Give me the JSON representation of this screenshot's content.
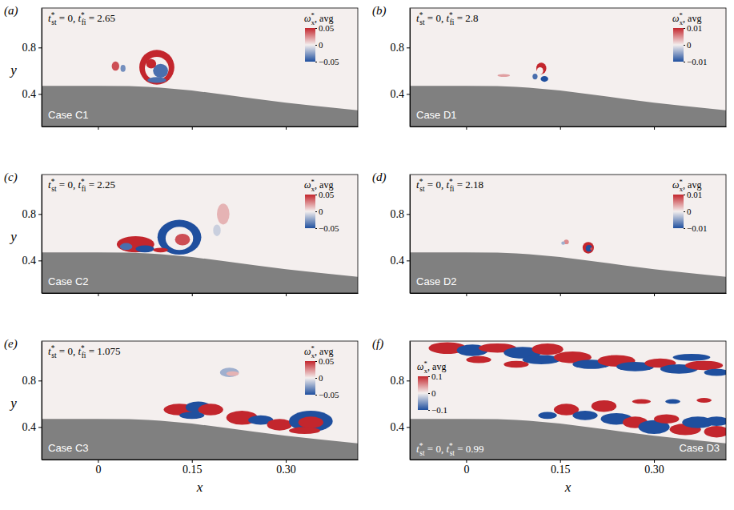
{
  "chart_data": [
    {
      "type": "contour",
      "panel_label": "(a)",
      "case_label": "Case C1",
      "time_labels": [
        {
          "base": "t",
          "sup": "*",
          "sub": "st",
          "rest": " = ",
          "value": 0
        },
        {
          "base": "t",
          "sup": "*",
          "sub": "fi",
          "rest": " = ",
          "value": 2.65
        }
      ],
      "time_sep": ", ",
      "colorbar_title": {
        "base": "ω",
        "sup": "*",
        "sub": "x",
        "rest": ", avg"
      },
      "clim": [
        -0.05,
        0.05
      ],
      "cticks": [
        0.05,
        0,
        {
          "value": -0.05,
          "label": "−0.05"
        }
      ],
      "legend": "top-right",
      "xlim": [
        -0.09,
        0.415
      ],
      "ylim": [
        0.12,
        1.14
      ],
      "xticks": [
        0,
        0.15,
        0.3
      ],
      "yticks": [
        0.4,
        0.8
      ],
      "ylabel": "y",
      "tick_labels": "y",
      "surface": {
        "x": [
          -0.09,
          0.0,
          0.05,
          0.08,
          0.1,
          0.15,
          0.2,
          0.25,
          0.3,
          0.35,
          0.415
        ],
        "y": [
          0.47,
          0.47,
          0.468,
          0.462,
          0.455,
          0.43,
          0.395,
          0.36,
          0.325,
          0.295,
          0.26
        ]
      },
      "structures": [
        {
          "x": 0.094,
          "y": 0.63,
          "rx": 0.028,
          "ry": 0.15,
          "value": 0.05
        },
        {
          "x": 0.094,
          "y": 0.62,
          "rx": 0.019,
          "ry": 0.1,
          "value": 0
        },
        {
          "x": 0.1,
          "y": 0.6,
          "rx": 0.012,
          "ry": 0.06,
          "value": -0.04
        },
        {
          "x": 0.085,
          "y": 0.66,
          "rx": 0.008,
          "ry": 0.04,
          "value": 0.05
        },
        {
          "x": 0.094,
          "y": 0.52,
          "rx": 0.015,
          "ry": 0.025,
          "value": -0.04
        },
        {
          "x": 0.028,
          "y": 0.64,
          "rx": 0.006,
          "ry": 0.04,
          "value": 0.04
        },
        {
          "x": 0.04,
          "y": 0.62,
          "rx": 0.004,
          "ry": 0.03,
          "value": -0.03
        }
      ]
    },
    {
      "type": "contour",
      "panel_label": "(b)",
      "case_label": "Case D1",
      "time_labels": [
        {
          "base": "t",
          "sup": "*",
          "sub": "st",
          "rest": " = ",
          "value": 0
        },
        {
          "base": "t",
          "sup": "*",
          "sub": "fi",
          "rest": " = ",
          "value": 2.8
        }
      ],
      "time_sep": ", ",
      "colorbar_title": {
        "base": "ω",
        "sup": "*",
        "sub": "x",
        "rest": ", avg"
      },
      "clim": [
        -0.01,
        0.01
      ],
      "cticks": [
        0.01,
        0,
        {
          "value": -0.01,
          "label": "−0.01"
        }
      ],
      "legend": "top-right",
      "xlim": [
        -0.09,
        0.415
      ],
      "ylim": [
        0.12,
        1.14
      ],
      "xticks": [
        0,
        0.15,
        0.3
      ],
      "yticks": [
        0.4,
        0.8
      ],
      "tick_labels": "y",
      "surface": {
        "x": [
          -0.09,
          0.0,
          0.05,
          0.08,
          0.1,
          0.15,
          0.2,
          0.25,
          0.3,
          0.35,
          0.415
        ],
        "y": [
          0.47,
          0.47,
          0.468,
          0.462,
          0.455,
          0.43,
          0.395,
          0.36,
          0.325,
          0.295,
          0.26
        ]
      },
      "structures": [
        {
          "x": 0.12,
          "y": 0.62,
          "rx": 0.008,
          "ry": 0.05,
          "value": 0.01
        },
        {
          "x": 0.118,
          "y": 0.6,
          "rx": 0.005,
          "ry": 0.03,
          "value": 0
        },
        {
          "x": 0.125,
          "y": 0.53,
          "rx": 0.006,
          "ry": 0.025,
          "value": -0.01
        },
        {
          "x": 0.11,
          "y": 0.55,
          "rx": 0.004,
          "ry": 0.025,
          "value": -0.008
        },
        {
          "x": 0.06,
          "y": 0.56,
          "rx": 0.01,
          "ry": 0.012,
          "value": 0.004
        }
      ]
    },
    {
      "type": "contour",
      "panel_label": "(c)",
      "case_label": "Case C2",
      "time_labels": [
        {
          "base": "t",
          "sup": "*",
          "sub": "st",
          "rest": " = ",
          "value": 0
        },
        {
          "base": "t",
          "sup": "*",
          "sub": "fi",
          "rest": " = ",
          "value": 2.25
        }
      ],
      "time_sep": ", ",
      "colorbar_title": {
        "base": "ω",
        "sup": "*",
        "sub": "x",
        "rest": ", avg"
      },
      "clim": [
        -0.05,
        0.05
      ],
      "cticks": [
        0.05,
        0,
        {
          "value": -0.05,
          "label": "−0.05"
        }
      ],
      "legend": "top-right",
      "xlim": [
        -0.09,
        0.415
      ],
      "ylim": [
        0.12,
        1.14
      ],
      "xticks": [
        0,
        0.15,
        0.3
      ],
      "yticks": [
        0.4,
        0.8
      ],
      "ylabel": "y",
      "tick_labels": "y",
      "surface": {
        "x": [
          -0.09,
          0.0,
          0.05,
          0.08,
          0.1,
          0.15,
          0.2,
          0.25,
          0.3,
          0.35,
          0.415
        ],
        "y": [
          0.47,
          0.47,
          0.468,
          0.462,
          0.455,
          0.43,
          0.395,
          0.36,
          0.325,
          0.295,
          0.26
        ]
      },
      "structures": [
        {
          "x": 0.13,
          "y": 0.6,
          "rx": 0.035,
          "ry": 0.15,
          "value": -0.05
        },
        {
          "x": 0.13,
          "y": 0.59,
          "rx": 0.022,
          "ry": 0.1,
          "value": 0
        },
        {
          "x": 0.135,
          "y": 0.58,
          "rx": 0.012,
          "ry": 0.05,
          "value": 0.04
        },
        {
          "x": 0.06,
          "y": 0.54,
          "rx": 0.03,
          "ry": 0.07,
          "value": 0.05
        },
        {
          "x": 0.075,
          "y": 0.5,
          "rx": 0.015,
          "ry": 0.03,
          "value": -0.05
        },
        {
          "x": 0.045,
          "y": 0.52,
          "rx": 0.01,
          "ry": 0.03,
          "value": -0.04
        },
        {
          "x": 0.1,
          "y": 0.49,
          "rx": 0.012,
          "ry": 0.02,
          "value": 0.05
        },
        {
          "x": 0.2,
          "y": 0.8,
          "rx": 0.01,
          "ry": 0.09,
          "value": 0.015
        },
        {
          "x": 0.19,
          "y": 0.66,
          "rx": 0.006,
          "ry": 0.05,
          "value": -0.01
        }
      ]
    },
    {
      "type": "contour",
      "panel_label": "(d)",
      "case_label": "Case D2",
      "time_labels": [
        {
          "base": "t",
          "sup": "*",
          "sub": "st",
          "rest": " = ",
          "value": 0
        },
        {
          "base": "t",
          "sup": "*",
          "sub": "fi",
          "rest": " = ",
          "value": 2.18
        }
      ],
      "time_sep": ", ",
      "colorbar_title": {
        "base": "ω",
        "sup": "*",
        "sub": "x",
        "rest": ", avg"
      },
      "clim": [
        -0.01,
        0.01
      ],
      "cticks": [
        0.01,
        0,
        {
          "value": -0.01,
          "label": "−0.01"
        }
      ],
      "legend": "top-right",
      "xlim": [
        -0.09,
        0.415
      ],
      "ylim": [
        0.12,
        1.14
      ],
      "xticks": [
        0,
        0.15,
        0.3
      ],
      "yticks": [
        0.4,
        0.8
      ],
      "tick_labels": "y",
      "surface": {
        "x": [
          -0.09,
          0.0,
          0.05,
          0.08,
          0.1,
          0.15,
          0.2,
          0.25,
          0.3,
          0.35,
          0.415
        ],
        "y": [
          0.47,
          0.47,
          0.468,
          0.462,
          0.455,
          0.43,
          0.395,
          0.36,
          0.325,
          0.295,
          0.26
        ]
      },
      "structures": [
        {
          "x": 0.195,
          "y": 0.51,
          "rx": 0.009,
          "ry": 0.05,
          "value": 0.01
        },
        {
          "x": 0.196,
          "y": 0.505,
          "rx": 0.005,
          "ry": 0.028,
          "value": -0.01
        },
        {
          "x": 0.2,
          "y": 0.5,
          "rx": 0.002,
          "ry": 0.012,
          "value": 0.008
        },
        {
          "x": 0.16,
          "y": 0.56,
          "rx": 0.004,
          "ry": 0.02,
          "value": 0.005
        },
        {
          "x": 0.155,
          "y": 0.55,
          "rx": 0.003,
          "ry": 0.015,
          "value": -0.004
        }
      ]
    },
    {
      "type": "contour",
      "panel_label": "(e)",
      "case_label": "Case C3",
      "time_labels": [
        {
          "base": "t",
          "sup": "*",
          "sub": "st",
          "rest": " = ",
          "value": 0
        },
        {
          "base": "t",
          "sup": "*",
          "sub": "fi",
          "rest": " = ",
          "value": 1.075
        }
      ],
      "time_sep": ", ",
      "colorbar_title": {
        "base": "ω",
        "sup": "*",
        "sub": "x",
        "rest": ", avg"
      },
      "clim": [
        -0.05,
        0.05
      ],
      "cticks": [
        0.05,
        0,
        {
          "value": -0.05,
          "label": "−0.05"
        }
      ],
      "legend": "top-right",
      "xlim": [
        -0.09,
        0.415
      ],
      "ylim": [
        0.12,
        1.14
      ],
      "xticks": [
        0,
        0.15,
        {
          "value": 0.3,
          "label": "0.30"
        }
      ],
      "yticks": [
        0.4,
        0.8
      ],
      "xlabel": "x",
      "ylabel": "y",
      "surface": {
        "x": [
          -0.09,
          0.0,
          0.05,
          0.08,
          0.1,
          0.15,
          0.2,
          0.25,
          0.3,
          0.35,
          0.415
        ],
        "y": [
          0.47,
          0.47,
          0.468,
          0.462,
          0.455,
          0.43,
          0.395,
          0.36,
          0.325,
          0.295,
          0.26
        ]
      },
      "structures": [
        {
          "x": 0.13,
          "y": 0.55,
          "rx": 0.025,
          "ry": 0.05,
          "value": 0.05
        },
        {
          "x": 0.16,
          "y": 0.57,
          "rx": 0.02,
          "ry": 0.05,
          "value": -0.05
        },
        {
          "x": 0.18,
          "y": 0.55,
          "rx": 0.02,
          "ry": 0.05,
          "value": 0.05
        },
        {
          "x": 0.15,
          "y": 0.5,
          "rx": 0.02,
          "ry": 0.03,
          "value": -0.05
        },
        {
          "x": 0.23,
          "y": 0.48,
          "rx": 0.025,
          "ry": 0.06,
          "value": 0.05
        },
        {
          "x": 0.26,
          "y": 0.46,
          "rx": 0.02,
          "ry": 0.04,
          "value": -0.05
        },
        {
          "x": 0.29,
          "y": 0.42,
          "rx": 0.02,
          "ry": 0.05,
          "value": 0.05
        },
        {
          "x": 0.34,
          "y": 0.45,
          "rx": 0.035,
          "ry": 0.09,
          "value": -0.05
        },
        {
          "x": 0.34,
          "y": 0.44,
          "rx": 0.02,
          "ry": 0.05,
          "value": 0.05
        },
        {
          "x": 0.33,
          "y": 0.37,
          "rx": 0.025,
          "ry": 0.03,
          "value": 0.05
        },
        {
          "x": 0.21,
          "y": 0.87,
          "rx": 0.015,
          "ry": 0.04,
          "value": -0.02
        },
        {
          "x": 0.215,
          "y": 0.86,
          "rx": 0.01,
          "ry": 0.02,
          "value": 0.015
        }
      ]
    },
    {
      "type": "contour",
      "panel_label": "(f)",
      "case_label": "Case D3",
      "time_labels": [
        {
          "base": "t",
          "sup": "*",
          "sub": "st",
          "rest": " = ",
          "value": 0
        },
        {
          "base": "t",
          "sup": "*",
          "sub": "st",
          "rest": " = ",
          "value": 0.99
        }
      ],
      "time_sep": ", ",
      "colorbar_title": {
        "base": "ω",
        "sup": "*",
        "sub": "x",
        "rest": ", avg"
      },
      "clim": [
        -0.1,
        0.1
      ],
      "cticks": [
        0.1,
        0,
        {
          "value": -0.1,
          "label": "−0.1"
        }
      ],
      "legend": "left",
      "xlim": [
        -0.09,
        0.415
      ],
      "ylim": [
        0.12,
        1.14
      ],
      "xticks": [
        0,
        0.15,
        {
          "value": 0.3,
          "label": "0.30"
        }
      ],
      "yticks": [
        0.4,
        0.8
      ],
      "xlabel": "x",
      "surface": {
        "x": [
          -0.09,
          0.0,
          0.05,
          0.08,
          0.1,
          0.15,
          0.2,
          0.25,
          0.3,
          0.35,
          0.415
        ],
        "y": [
          0.47,
          0.47,
          0.468,
          0.462,
          0.455,
          0.43,
          0.395,
          0.36,
          0.325,
          0.295,
          0.26
        ]
      },
      "structures": [
        {
          "x": -0.03,
          "y": 1.08,
          "rx": 0.03,
          "ry": 0.05,
          "value": 0.1
        },
        {
          "x": 0.01,
          "y": 1.06,
          "rx": 0.025,
          "ry": 0.05,
          "value": -0.1
        },
        {
          "x": 0.05,
          "y": 1.08,
          "rx": 0.03,
          "ry": 0.04,
          "value": 0.1
        },
        {
          "x": 0.09,
          "y": 1.04,
          "rx": 0.03,
          "ry": 0.05,
          "value": -0.1
        },
        {
          "x": 0.13,
          "y": 1.07,
          "rx": 0.025,
          "ry": 0.05,
          "value": 0.1
        },
        {
          "x": 0.12,
          "y": 0.98,
          "rx": 0.03,
          "ry": 0.04,
          "value": -0.1
        },
        {
          "x": 0.17,
          "y": 1.0,
          "rx": 0.03,
          "ry": 0.05,
          "value": 0.1
        },
        {
          "x": 0.2,
          "y": 0.94,
          "rx": 0.03,
          "ry": 0.04,
          "value": -0.1
        },
        {
          "x": 0.24,
          "y": 0.97,
          "rx": 0.03,
          "ry": 0.05,
          "value": 0.1
        },
        {
          "x": 0.27,
          "y": 0.92,
          "rx": 0.03,
          "ry": 0.04,
          "value": -0.1
        },
        {
          "x": 0.31,
          "y": 0.95,
          "rx": 0.025,
          "ry": 0.04,
          "value": 0.1
        },
        {
          "x": 0.34,
          "y": 0.9,
          "rx": 0.03,
          "ry": 0.04,
          "value": -0.1
        },
        {
          "x": 0.38,
          "y": 0.93,
          "rx": 0.03,
          "ry": 0.04,
          "value": 0.1
        },
        {
          "x": 0.4,
          "y": 0.87,
          "rx": 0.02,
          "ry": 0.03,
          "value": -0.1
        },
        {
          "x": 0.08,
          "y": 0.94,
          "rx": 0.02,
          "ry": 0.03,
          "value": 0.1
        },
        {
          "x": 0.36,
          "y": 1.0,
          "rx": 0.03,
          "ry": 0.03,
          "value": -0.1
        },
        {
          "x": 0.02,
          "y": 0.98,
          "rx": 0.02,
          "ry": 0.03,
          "value": 0.1
        },
        {
          "x": 0.16,
          "y": 0.55,
          "rx": 0.02,
          "ry": 0.05,
          "value": 0.1
        },
        {
          "x": 0.19,
          "y": 0.5,
          "rx": 0.02,
          "ry": 0.04,
          "value": -0.1
        },
        {
          "x": 0.22,
          "y": 0.58,
          "rx": 0.02,
          "ry": 0.05,
          "value": 0.1
        },
        {
          "x": 0.24,
          "y": 0.47,
          "rx": 0.025,
          "ry": 0.05,
          "value": -0.1
        },
        {
          "x": 0.27,
          "y": 0.44,
          "rx": 0.02,
          "ry": 0.05,
          "value": 0.1
        },
        {
          "x": 0.3,
          "y": 0.4,
          "rx": 0.025,
          "ry": 0.06,
          "value": -0.1
        },
        {
          "x": 0.32,
          "y": 0.47,
          "rx": 0.02,
          "ry": 0.04,
          "value": 0.1
        },
        {
          "x": 0.35,
          "y": 0.38,
          "rx": 0.025,
          "ry": 0.05,
          "value": 0.1
        },
        {
          "x": 0.37,
          "y": 0.44,
          "rx": 0.025,
          "ry": 0.05,
          "value": -0.1
        },
        {
          "x": 0.4,
          "y": 0.36,
          "rx": 0.02,
          "ry": 0.05,
          "value": 0.1
        },
        {
          "x": 0.4,
          "y": 0.45,
          "rx": 0.02,
          "ry": 0.04,
          "value": -0.1
        },
        {
          "x": 0.13,
          "y": 0.5,
          "rx": 0.015,
          "ry": 0.03,
          "value": -0.1
        },
        {
          "x": 0.28,
          "y": 0.62,
          "rx": 0.015,
          "ry": 0.02,
          "value": 0.1
        },
        {
          "x": 0.33,
          "y": 0.62,
          "rx": 0.012,
          "ry": 0.02,
          "value": -0.1
        },
        {
          "x": 0.38,
          "y": 0.63,
          "rx": 0.012,
          "ry": 0.02,
          "value": 0.1
        }
      ]
    }
  ]
}
